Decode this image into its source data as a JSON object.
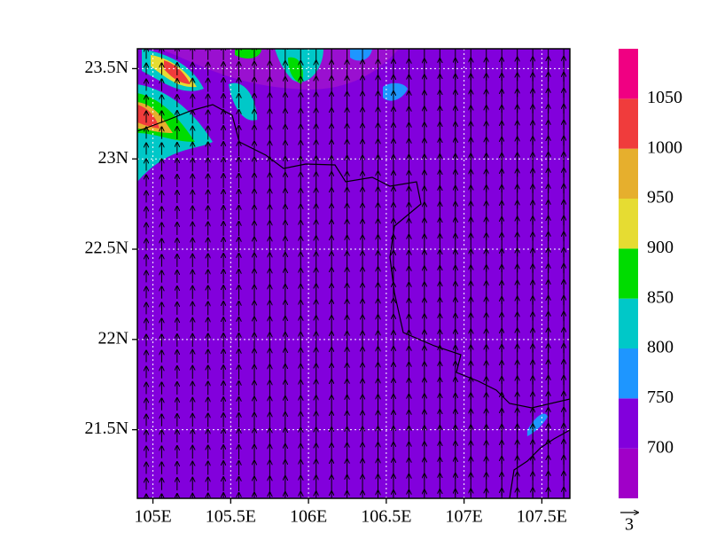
{
  "chart_data": {
    "type": "map",
    "xlim": [
      104.9,
      107.68
    ],
    "ylim": [
      21.12,
      23.61
    ],
    "xticks": [
      {
        "value": 105,
        "label": "105E"
      },
      {
        "value": 105.5,
        "label": "105.5E"
      },
      {
        "value": 106,
        "label": "106E"
      },
      {
        "value": 106.5,
        "label": "106.5E"
      },
      {
        "value": 107,
        "label": "107E"
      },
      {
        "value": 107.5,
        "label": "107.5E"
      }
    ],
    "yticks": [
      {
        "value": 21.5,
        "label": "21.5N"
      },
      {
        "value": 22,
        "label": "22N"
      },
      {
        "value": 22.5,
        "label": "22.5N"
      },
      {
        "value": 23,
        "label": "23N"
      },
      {
        "value": 23.5,
        "label": "23.5N"
      }
    ],
    "grid": true,
    "colorbar": {
      "levels": [
        700,
        750,
        800,
        850,
        900,
        950,
        1000,
        1050
      ],
      "colors": [
        "#a000c8",
        "#8200dc",
        "#1e96ff",
        "#00c8c8",
        "#00dc00",
        "#e6dc32",
        "#e6af2d",
        "#f03c3c",
        "#f00082"
      ]
    },
    "vector_reference": "3"
  }
}
